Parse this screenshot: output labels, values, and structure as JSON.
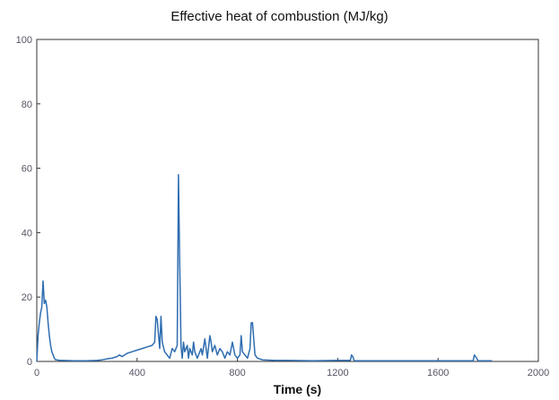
{
  "chart_data": {
    "type": "line",
    "title": "Effective heat of combustion  (MJ/kg)",
    "xlabel": "Time (s)",
    "ylabel": "",
    "xlim": [
      0,
      2000
    ],
    "ylim": [
      0,
      100
    ],
    "xticks": [
      0,
      400,
      800,
      1200,
      1600,
      2000
    ],
    "yticks": [
      0,
      20,
      40,
      60,
      80,
      100
    ],
    "grid": false,
    "colors": {
      "line": "#2f6db0",
      "axis": "#333333"
    },
    "series": [
      {
        "x": [
          0,
          5,
          10,
          15,
          20,
          25,
          30,
          35,
          40,
          45,
          50,
          55,
          60,
          65,
          70,
          75,
          80,
          90,
          100,
          150,
          200,
          240,
          260,
          280,
          300,
          320,
          330,
          340,
          360,
          380,
          400,
          420,
          440,
          460,
          470,
          475,
          480,
          490,
          495,
          500,
          510,
          520,
          530,
          540,
          550,
          560,
          565,
          570,
          573,
          575,
          577,
          580,
          585,
          590,
          600,
          605,
          610,
          620,
          625,
          630,
          640,
          650,
          655,
          660,
          670,
          680,
          690,
          695,
          700,
          710,
          720,
          730,
          740,
          750,
          760,
          770,
          780,
          790,
          800,
          810,
          815,
          820,
          830,
          840,
          850,
          855,
          860,
          870,
          880,
          900,
          950,
          1000,
          1100,
          1200,
          1250,
          1255,
          1260,
          1265,
          1270,
          1300,
          1400,
          1500,
          1600,
          1700,
          1740,
          1745,
          1750,
          1760,
          1800,
          1815
        ],
        "y": [
          0,
          8,
          12,
          15,
          17,
          25,
          18,
          19,
          17,
          12,
          8,
          5,
          3,
          2,
          1,
          0.5,
          0.5,
          0.3,
          0.3,
          0.2,
          0.2,
          0.3,
          0.5,
          0.8,
          1,
          1.5,
          2,
          1.5,
          2.5,
          3,
          3.5,
          4,
          4.5,
          5,
          6,
          14,
          13,
          4,
          14,
          6,
          3,
          2,
          1,
          4,
          3,
          5,
          58,
          30,
          15,
          5,
          3,
          1,
          6,
          3,
          5,
          1,
          4,
          2,
          6,
          3,
          1,
          3,
          4,
          2,
          7,
          1,
          8,
          6,
          3,
          5,
          2,
          4,
          3,
          1,
          3,
          2,
          6,
          2,
          1,
          2,
          8,
          3,
          2,
          1,
          4,
          12,
          12,
          2,
          1,
          0.5,
          0.3,
          0.3,
          0.2,
          0.3,
          0.3,
          2,
          1.5,
          0.3,
          0.2,
          0.2,
          0.2,
          0.2,
          0.2,
          0.2,
          0.2,
          2,
          1.5,
          0.2,
          0.2,
          0.2
        ]
      }
    ]
  }
}
